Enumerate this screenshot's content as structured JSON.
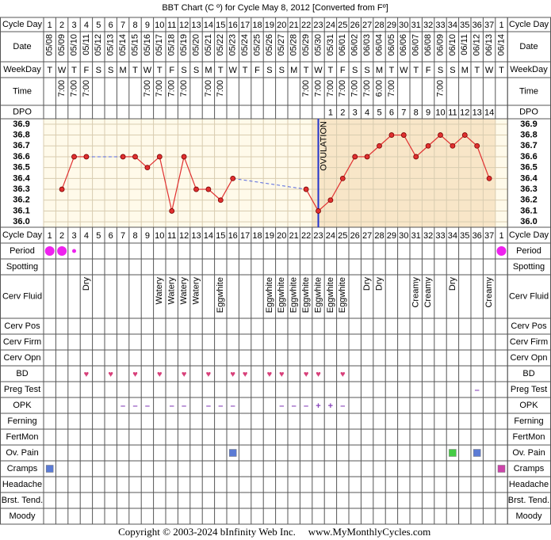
{
  "title": "BBT Chart (C º) for Cycle May 8, 2012  [Converted from Fº]",
  "rows": [
    {
      "label": "Cycle Day",
      "cells": [
        1,
        2,
        3,
        4,
        5,
        6,
        7,
        8,
        9,
        10,
        11,
        12,
        13,
        14,
        15,
        16,
        17,
        18,
        19,
        20,
        21,
        22,
        23,
        24,
        25,
        26,
        27,
        28,
        29,
        30,
        31,
        32,
        33,
        34,
        35,
        36,
        37,
        1
      ]
    },
    {
      "label": "Date",
      "cells": [
        "05/08",
        "05/09",
        "05/10",
        "05/11",
        "05/12",
        "05/13",
        "05/14",
        "05/15",
        "05/16",
        "05/17",
        "05/18",
        "05/19",
        "05/20",
        "05/21",
        "05/22",
        "05/23",
        "05/24",
        "05/25",
        "05/26",
        "05/27",
        "05/28",
        "05/29",
        "05/30",
        "05/31",
        "06/01",
        "06/02",
        "06/03",
        "06/04",
        "06/05",
        "06/06",
        "06/07",
        "06/08",
        "06/09",
        "06/10",
        "06/11",
        "06/12",
        "06/13",
        "06/14"
      ]
    },
    {
      "label": "WeekDay",
      "cells": [
        "T",
        "W",
        "T",
        "F",
        "S",
        "S",
        "M",
        "T",
        "W",
        "T",
        "F",
        "S",
        "S",
        "M",
        "T",
        "W",
        "T",
        "F",
        "S",
        "S",
        "M",
        "T",
        "W",
        "T",
        "F",
        "S",
        "S",
        "M",
        "T",
        "W",
        "T",
        "F",
        "S",
        "S",
        "M",
        "T",
        "W",
        "T"
      ]
    },
    {
      "label": "Time",
      "cells": [
        null,
        "7:00",
        "7:00",
        "7:00",
        null,
        null,
        null,
        null,
        "7:00",
        "7:00",
        "7:00",
        "7:00",
        null,
        "7:00",
        "7:00",
        null,
        null,
        null,
        null,
        null,
        null,
        "7:00",
        "7:00",
        "7:00",
        "7:00",
        "7:00",
        "7:00",
        "6:00",
        "7:00",
        null,
        null,
        null,
        "7:00",
        null,
        null,
        null,
        null,
        null
      ]
    },
    {
      "label": "DPO",
      "cells": [
        null,
        null,
        null,
        null,
        null,
        null,
        null,
        null,
        null,
        null,
        null,
        null,
        null,
        null,
        null,
        null,
        null,
        null,
        null,
        null,
        null,
        null,
        null,
        1,
        2,
        3,
        4,
        5,
        6,
        7,
        8,
        9,
        10,
        11,
        12,
        13,
        14,
        null
      ]
    },
    {
      "label": "Period",
      "color": "#ee22ee",
      "cells": [
        "large",
        "large",
        "small",
        null,
        null,
        null,
        null,
        null,
        null,
        null,
        null,
        null,
        null,
        null,
        null,
        null,
        null,
        null,
        null,
        null,
        null,
        null,
        null,
        null,
        null,
        null,
        null,
        null,
        null,
        null,
        null,
        null,
        null,
        null,
        null,
        null,
        null,
        "large"
      ]
    },
    {
      "label": "Spotting"
    },
    {
      "label": "Cerv Fluid",
      "cells": [
        null,
        null,
        null,
        "Dry",
        null,
        null,
        null,
        null,
        null,
        "Watery",
        "Watery",
        "Watery",
        "Watery",
        null,
        "Eggwhite",
        null,
        null,
        null,
        "Eggwhite",
        "Eggwhite",
        "Eggwhite",
        "Eggwhite",
        "Eggwhite",
        "Eggwhite",
        "Eggwhite",
        null,
        "Dry",
        "Dry",
        null,
        null,
        "Creamy",
        "Creamy",
        null,
        "Dry",
        null,
        null,
        "Creamy",
        null
      ]
    },
    {
      "label": "Cerv Pos"
    },
    {
      "label": "Cerv Firm"
    },
    {
      "label": "Cerv Opn"
    },
    {
      "label": "BD",
      "color": "#d8407a",
      "cells": [
        null,
        null,
        null,
        "♥",
        null,
        "♥",
        null,
        "♥",
        null,
        "♥",
        null,
        "♥",
        null,
        "♥",
        null,
        "♥",
        "♥",
        null,
        "♥",
        "♥",
        null,
        "♥",
        "♥",
        null,
        "♥",
        null,
        null,
        null,
        null,
        null,
        null,
        null,
        null,
        null,
        null,
        null,
        null,
        null
      ]
    },
    {
      "label": "Preg Test",
      "color": "#8844bb",
      "cells": [
        null,
        null,
        null,
        null,
        null,
        null,
        null,
        null,
        null,
        null,
        null,
        null,
        null,
        null,
        null,
        null,
        null,
        null,
        null,
        null,
        null,
        null,
        null,
        null,
        null,
        null,
        null,
        null,
        null,
        null,
        null,
        null,
        null,
        null,
        null,
        "–",
        null,
        null
      ]
    },
    {
      "label": "OPK",
      "color": "#8844bb",
      "cells": [
        null,
        null,
        null,
        null,
        null,
        null,
        "–",
        "–",
        "–",
        null,
        "–",
        "–",
        null,
        "–",
        "–",
        "–",
        null,
        null,
        null,
        "–",
        "–",
        "–",
        "+",
        "+",
        "–",
        null,
        null,
        null,
        null,
        null,
        null,
        null,
        null,
        null,
        null,
        null,
        null,
        null
      ]
    },
    {
      "label": "Ferning"
    },
    {
      "label": "FertMon"
    },
    {
      "label": "Ov. Pain",
      "cells": [
        null,
        null,
        null,
        null,
        null,
        null,
        null,
        null,
        null,
        null,
        null,
        null,
        null,
        null,
        null,
        "#5b7bd5",
        null,
        null,
        null,
        null,
        null,
        null,
        null,
        null,
        null,
        null,
        null,
        null,
        null,
        null,
        null,
        null,
        null,
        "#44cc44",
        null,
        "#5b7bd5",
        null,
        null
      ]
    },
    {
      "label": "Cramps",
      "cells": [
        "#5b7bd5",
        null,
        null,
        null,
        null,
        null,
        null,
        null,
        null,
        null,
        null,
        null,
        null,
        null,
        null,
        null,
        null,
        null,
        null,
        null,
        null,
        null,
        null,
        null,
        null,
        null,
        null,
        null,
        null,
        null,
        null,
        null,
        null,
        null,
        null,
        null,
        null,
        "#cc44aa"
      ]
    },
    {
      "label": "Headache"
    },
    {
      "label": "Brst. Tend."
    },
    {
      "label": "Moody"
    }
  ],
  "chart_data": {
    "type": "line",
    "color": "#e03030",
    "gap_color": "#5566dd",
    "values": [
      null,
      36.3,
      36.6,
      36.6,
      null,
      null,
      36.6,
      36.6,
      36.5,
      36.6,
      36.1,
      36.6,
      36.3,
      36.3,
      36.2,
      36.4,
      null,
      null,
      null,
      null,
      null,
      36.3,
      36.1,
      36.2,
      36.4,
      36.6,
      36.6,
      36.7,
      36.8,
      36.8,
      36.6,
      36.7,
      36.8,
      36.7,
      36.8,
      36.7,
      36.4,
      null
    ],
    "ylim": [
      35.95,
      36.95
    ],
    "yticks": [
      {
        "value": 36,
        "label": "36.0"
      },
      36.1,
      36.2,
      36.3,
      36.4,
      36.5,
      36.6,
      36.7,
      36.8,
      36.9
    ],
    "grid": true,
    "ovulation": {
      "label": "OVULATION",
      "day": 23,
      "color": "#2233cc"
    }
  },
  "copyright": "Copyright © 2003-2024 bInfinity Web Inc.",
  "website": "www.MyMonthlyCycles.com"
}
